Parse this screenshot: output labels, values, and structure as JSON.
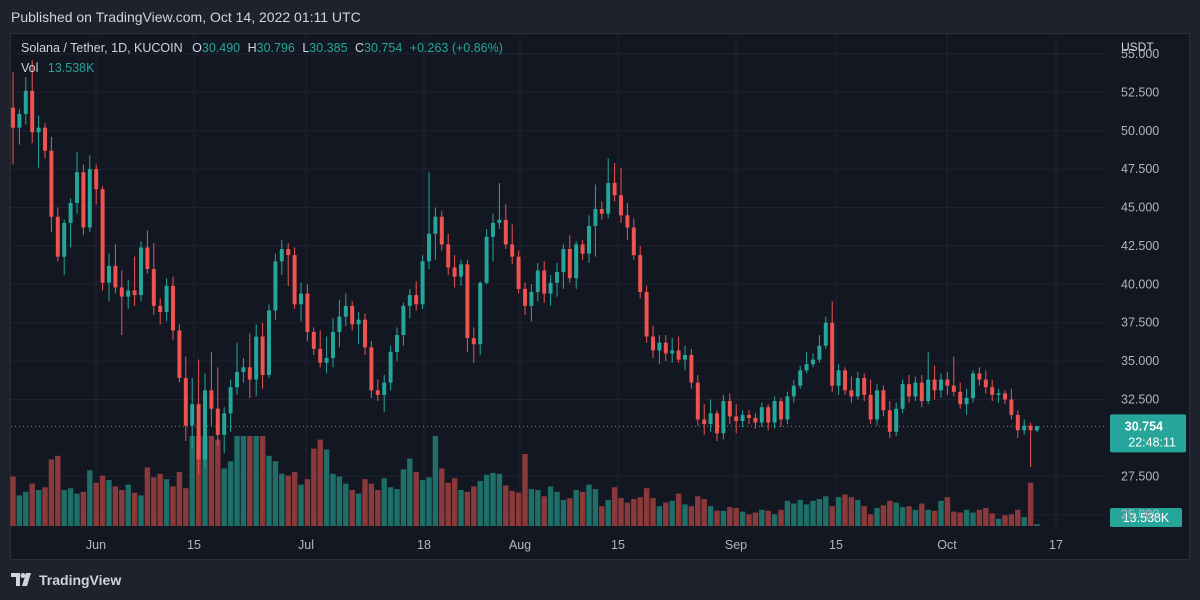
{
  "header": {
    "published": "Published on TradingView.com, Oct 14, 2022 01:11 UTC"
  },
  "legend": {
    "symbol": "Solana / Tether, 1D, KUCOIN",
    "o_label": "O",
    "o_value": "30.490",
    "h_label": "H",
    "h_value": "30.796",
    "l_label": "L",
    "l_value": "30.385",
    "c_label": "C",
    "c_value": "30.754",
    "change": "+0.263 (+0.86%)",
    "vol_label": "Vol",
    "vol_value": "13.538K"
  },
  "price_axis": {
    "currency": "USDT",
    "ticks": [
      "55.000",
      "52.500",
      "50.000",
      "47.500",
      "45.000",
      "42.500",
      "40.000",
      "37.500",
      "35.000",
      "32.500",
      "27.500",
      "25.000"
    ],
    "last_price": "30.754",
    "countdown": "22:48:11",
    "volume_badge": "13.538K"
  },
  "time_axis": {
    "ticks": [
      "Jun",
      "15",
      "Jul",
      "18",
      "Aug",
      "15",
      "Sep",
      "15",
      "Oct",
      "17"
    ]
  },
  "footer": {
    "brand": "TradingView"
  },
  "colors": {
    "up": "#26a69a",
    "down": "#ef5350",
    "vol_up": "#1f6e68",
    "vol_down": "#8a3a3b",
    "bg": "#131722"
  },
  "chart_data": {
    "type": "candlestick",
    "symbol": "Solana / Tether",
    "interval": "1D",
    "y_unit": "USDT",
    "ylim": [
      24.2,
      56.3
    ],
    "grid": true,
    "x_axis_dates": [
      "2022-06-01",
      "2022-06-15",
      "2022-07-01",
      "2022-07-18",
      "2022-08-01",
      "2022-08-15",
      "2022-09-01",
      "2022-09-15",
      "2022-10-01",
      "2022-10-17"
    ],
    "series": [
      {
        "o": 51.5,
        "h": 53.8,
        "l": 47.8,
        "c": 50.2,
        "v": 0.55
      },
      {
        "o": 50.2,
        "h": 51.4,
        "l": 49.1,
        "c": 51.1,
        "v": 0.34
      },
      {
        "o": 51.1,
        "h": 53.5,
        "l": 50.4,
        "c": 52.6,
        "v": 0.38
      },
      {
        "o": 52.6,
        "h": 54.6,
        "l": 49.2,
        "c": 49.9,
        "v": 0.47
      },
      {
        "o": 49.9,
        "h": 51.0,
        "l": 47.6,
        "c": 50.2,
        "v": 0.4
      },
      {
        "o": 50.2,
        "h": 50.5,
        "l": 48.2,
        "c": 48.7,
        "v": 0.43
      },
      {
        "o": 48.7,
        "h": 49.6,
        "l": 43.4,
        "c": 44.4,
        "v": 0.74
      },
      {
        "o": 44.4,
        "h": 45.0,
        "l": 41.5,
        "c": 41.8,
        "v": 0.78
      },
      {
        "o": 41.8,
        "h": 44.2,
        "l": 40.6,
        "c": 44.0,
        "v": 0.4
      },
      {
        "o": 44.0,
        "h": 45.6,
        "l": 42.4,
        "c": 45.3,
        "v": 0.42
      },
      {
        "o": 45.3,
        "h": 48.6,
        "l": 44.6,
        "c": 47.3,
        "v": 0.36
      },
      {
        "o": 47.3,
        "h": 47.8,
        "l": 43.2,
        "c": 43.7,
        "v": 0.38
      },
      {
        "o": 43.7,
        "h": 48.4,
        "l": 43.4,
        "c": 47.5,
        "v": 0.62
      },
      {
        "o": 47.5,
        "h": 47.8,
        "l": 45.2,
        "c": 46.2,
        "v": 0.48
      },
      {
        "o": 46.2,
        "h": 46.4,
        "l": 39.6,
        "c": 40.1,
        "v": 0.56
      },
      {
        "o": 40.1,
        "h": 42.0,
        "l": 38.9,
        "c": 41.2,
        "v": 0.51
      },
      {
        "o": 41.2,
        "h": 42.6,
        "l": 39.4,
        "c": 39.8,
        "v": 0.44
      },
      {
        "o": 39.8,
        "h": 40.9,
        "l": 36.7,
        "c": 39.2,
        "v": 0.4
      },
      {
        "o": 39.2,
        "h": 40.3,
        "l": 38.4,
        "c": 39.6,
        "v": 0.46
      },
      {
        "o": 39.6,
        "h": 41.8,
        "l": 38.6,
        "c": 39.3,
        "v": 0.37
      },
      {
        "o": 39.3,
        "h": 42.8,
        "l": 38.9,
        "c": 42.4,
        "v": 0.34
      },
      {
        "o": 42.4,
        "h": 43.5,
        "l": 40.7,
        "c": 41.0,
        "v": 0.65
      },
      {
        "o": 41.0,
        "h": 42.7,
        "l": 38.0,
        "c": 38.6,
        "v": 0.54
      },
      {
        "o": 38.6,
        "h": 39.1,
        "l": 37.4,
        "c": 38.2,
        "v": 0.58
      },
      {
        "o": 38.2,
        "h": 40.4,
        "l": 37.6,
        "c": 39.9,
        "v": 0.52
      },
      {
        "o": 39.9,
        "h": 40.5,
        "l": 36.4,
        "c": 37.0,
        "v": 0.44
      },
      {
        "o": 37.0,
        "h": 37.4,
        "l": 33.6,
        "c": 33.9,
        "v": 0.6
      },
      {
        "o": 33.9,
        "h": 35.3,
        "l": 29.8,
        "c": 30.8,
        "v": 0.42
      },
      {
        "o": 30.8,
        "h": 33.9,
        "l": 29.3,
        "c": 32.2,
        "v": 1.0
      },
      {
        "o": 32.2,
        "h": 35.1,
        "l": 27.6,
        "c": 28.6,
        "v": 1.0
      },
      {
        "o": 28.6,
        "h": 34.2,
        "l": 28.0,
        "c": 33.1,
        "v": 1.0
      },
      {
        "o": 33.1,
        "h": 35.6,
        "l": 30.8,
        "c": 31.9,
        "v": 1.0
      },
      {
        "o": 31.9,
        "h": 34.6,
        "l": 29.5,
        "c": 30.2,
        "v": 0.96
      },
      {
        "o": 30.2,
        "h": 32.0,
        "l": 29.0,
        "c": 31.6,
        "v": 0.64
      },
      {
        "o": 31.6,
        "h": 33.8,
        "l": 30.4,
        "c": 33.3,
        "v": 0.72
      },
      {
        "o": 33.3,
        "h": 36.2,
        "l": 32.8,
        "c": 34.3,
        "v": 1.0
      },
      {
        "o": 34.3,
        "h": 35.2,
        "l": 33.6,
        "c": 34.6,
        "v": 1.0
      },
      {
        "o": 34.6,
        "h": 36.8,
        "l": 32.6,
        "c": 33.8,
        "v": 1.0
      },
      {
        "o": 33.8,
        "h": 37.4,
        "l": 32.7,
        "c": 36.6,
        "v": 1.0
      },
      {
        "o": 36.6,
        "h": 37.5,
        "l": 33.2,
        "c": 34.1,
        "v": 1.0
      },
      {
        "o": 34.1,
        "h": 38.7,
        "l": 33.9,
        "c": 38.3,
        "v": 0.78
      },
      {
        "o": 38.3,
        "h": 42.0,
        "l": 37.7,
        "c": 41.5,
        "v": 0.72
      },
      {
        "o": 41.5,
        "h": 42.9,
        "l": 40.6,
        "c": 42.3,
        "v": 0.58
      },
      {
        "o": 42.3,
        "h": 42.7,
        "l": 39.9,
        "c": 41.9,
        "v": 0.56
      },
      {
        "o": 41.9,
        "h": 42.4,
        "l": 38.4,
        "c": 38.7,
        "v": 0.6
      },
      {
        "o": 38.7,
        "h": 40.1,
        "l": 37.6,
        "c": 39.4,
        "v": 0.46
      },
      {
        "o": 39.4,
        "h": 40.0,
        "l": 36.3,
        "c": 36.9,
        "v": 0.52
      },
      {
        "o": 36.9,
        "h": 37.2,
        "l": 35.4,
        "c": 35.8,
        "v": 0.86
      },
      {
        "o": 35.8,
        "h": 37.0,
        "l": 34.6,
        "c": 34.9,
        "v": 0.96
      },
      {
        "o": 34.9,
        "h": 36.6,
        "l": 34.2,
        "c": 35.2,
        "v": 0.85
      },
      {
        "o": 35.2,
        "h": 37.8,
        "l": 34.6,
        "c": 36.9,
        "v": 0.58
      },
      {
        "o": 36.9,
        "h": 39.0,
        "l": 35.9,
        "c": 37.9,
        "v": 0.55
      },
      {
        "o": 37.9,
        "h": 39.4,
        "l": 37.3,
        "c": 38.6,
        "v": 0.47
      },
      {
        "o": 38.6,
        "h": 38.9,
        "l": 37.0,
        "c": 37.4,
        "v": 0.4
      },
      {
        "o": 37.4,
        "h": 38.2,
        "l": 36.1,
        "c": 37.7,
        "v": 0.36
      },
      {
        "o": 37.7,
        "h": 38.1,
        "l": 35.4,
        "c": 35.9,
        "v": 0.52
      },
      {
        "o": 35.9,
        "h": 36.3,
        "l": 32.6,
        "c": 33.1,
        "v": 0.47
      },
      {
        "o": 33.1,
        "h": 33.8,
        "l": 32.4,
        "c": 32.8,
        "v": 0.4
      },
      {
        "o": 32.8,
        "h": 34.1,
        "l": 31.7,
        "c": 33.6,
        "v": 0.53
      },
      {
        "o": 33.6,
        "h": 36.0,
        "l": 33.1,
        "c": 35.6,
        "v": 0.43
      },
      {
        "o": 35.6,
        "h": 37.2,
        "l": 35.0,
        "c": 36.7,
        "v": 0.41
      },
      {
        "o": 36.7,
        "h": 38.8,
        "l": 36.0,
        "c": 38.6,
        "v": 0.63
      },
      {
        "o": 38.6,
        "h": 39.7,
        "l": 37.8,
        "c": 39.3,
        "v": 0.75
      },
      {
        "o": 39.3,
        "h": 40.2,
        "l": 38.3,
        "c": 38.7,
        "v": 0.6
      },
      {
        "o": 38.7,
        "h": 41.9,
        "l": 38.4,
        "c": 41.5,
        "v": 0.51
      },
      {
        "o": 41.5,
        "h": 47.3,
        "l": 41.0,
        "c": 43.3,
        "v": 0.54
      },
      {
        "o": 43.3,
        "h": 45.0,
        "l": 41.6,
        "c": 44.4,
        "v": 1.0
      },
      {
        "o": 44.4,
        "h": 44.8,
        "l": 42.2,
        "c": 42.6,
        "v": 0.64
      },
      {
        "o": 42.6,
        "h": 43.3,
        "l": 40.6,
        "c": 41.1,
        "v": 0.48
      },
      {
        "o": 41.1,
        "h": 41.9,
        "l": 39.8,
        "c": 40.5,
        "v": 0.53
      },
      {
        "o": 40.5,
        "h": 41.6,
        "l": 39.9,
        "c": 41.3,
        "v": 0.4
      },
      {
        "o": 41.3,
        "h": 41.6,
        "l": 35.6,
        "c": 36.5,
        "v": 0.38
      },
      {
        "o": 36.5,
        "h": 37.2,
        "l": 34.9,
        "c": 36.1,
        "v": 0.44
      },
      {
        "o": 36.1,
        "h": 40.2,
        "l": 35.4,
        "c": 40.1,
        "v": 0.5
      },
      {
        "o": 40.1,
        "h": 43.6,
        "l": 40.0,
        "c": 43.1,
        "v": 0.57
      },
      {
        "o": 43.1,
        "h": 44.6,
        "l": 41.5,
        "c": 44.0,
        "v": 0.59
      },
      {
        "o": 44.0,
        "h": 46.6,
        "l": 43.6,
        "c": 44.2,
        "v": 0.58
      },
      {
        "o": 44.2,
        "h": 45.2,
        "l": 42.3,
        "c": 42.6,
        "v": 0.45
      },
      {
        "o": 42.6,
        "h": 43.9,
        "l": 41.3,
        "c": 41.8,
        "v": 0.39
      },
      {
        "o": 41.8,
        "h": 42.2,
        "l": 39.4,
        "c": 39.7,
        "v": 0.37
      },
      {
        "o": 39.7,
        "h": 40.1,
        "l": 38.0,
        "c": 38.6,
        "v": 0.8
      },
      {
        "o": 38.6,
        "h": 40.0,
        "l": 37.6,
        "c": 39.5,
        "v": 0.41
      },
      {
        "o": 39.5,
        "h": 41.4,
        "l": 38.9,
        "c": 40.9,
        "v": 0.4
      },
      {
        "o": 40.9,
        "h": 41.5,
        "l": 38.8,
        "c": 39.4,
        "v": 0.33
      },
      {
        "o": 39.4,
        "h": 40.6,
        "l": 38.6,
        "c": 40.1,
        "v": 0.44
      },
      {
        "o": 40.1,
        "h": 41.4,
        "l": 39.2,
        "c": 40.8,
        "v": 0.38
      },
      {
        "o": 40.8,
        "h": 42.6,
        "l": 39.7,
        "c": 42.3,
        "v": 0.29
      },
      {
        "o": 42.3,
        "h": 43.2,
        "l": 40.1,
        "c": 40.4,
        "v": 0.31
      },
      {
        "o": 40.4,
        "h": 42.8,
        "l": 39.7,
        "c": 42.6,
        "v": 0.4
      },
      {
        "o": 42.6,
        "h": 42.9,
        "l": 41.6,
        "c": 42.0,
        "v": 0.38
      },
      {
        "o": 42.0,
        "h": 44.5,
        "l": 41.4,
        "c": 43.8,
        "v": 0.46
      },
      {
        "o": 43.8,
        "h": 46.5,
        "l": 41.8,
        "c": 44.9,
        "v": 0.41
      },
      {
        "o": 44.9,
        "h": 45.4,
        "l": 44.2,
        "c": 44.6,
        "v": 0.22
      },
      {
        "o": 44.6,
        "h": 48.2,
        "l": 44.3,
        "c": 46.6,
        "v": 0.29
      },
      {
        "o": 46.6,
        "h": 47.9,
        "l": 45.4,
        "c": 45.8,
        "v": 0.43
      },
      {
        "o": 45.8,
        "h": 47.6,
        "l": 44.0,
        "c": 44.5,
        "v": 0.31
      },
      {
        "o": 44.5,
        "h": 45.3,
        "l": 42.9,
        "c": 43.7,
        "v": 0.26
      },
      {
        "o": 43.7,
        "h": 44.3,
        "l": 41.6,
        "c": 41.9,
        "v": 0.3
      },
      {
        "o": 41.9,
        "h": 42.5,
        "l": 39.1,
        "c": 39.5,
        "v": 0.32
      },
      {
        "o": 39.5,
        "h": 39.9,
        "l": 36.2,
        "c": 36.6,
        "v": 0.42
      },
      {
        "o": 36.6,
        "h": 37.3,
        "l": 35.2,
        "c": 35.7,
        "v": 0.31
      },
      {
        "o": 35.7,
        "h": 36.7,
        "l": 34.8,
        "c": 36.2,
        "v": 0.22
      },
      {
        "o": 36.2,
        "h": 36.7,
        "l": 35.0,
        "c": 35.5,
        "v": 0.26
      },
      {
        "o": 35.5,
        "h": 36.5,
        "l": 34.9,
        "c": 35.7,
        "v": 0.28
      },
      {
        "o": 35.7,
        "h": 36.6,
        "l": 34.9,
        "c": 35.1,
        "v": 0.36
      },
      {
        "o": 35.1,
        "h": 36.0,
        "l": 34.4,
        "c": 35.4,
        "v": 0.24
      },
      {
        "o": 35.4,
        "h": 35.8,
        "l": 33.2,
        "c": 33.6,
        "v": 0.22
      },
      {
        "o": 33.6,
        "h": 34.1,
        "l": 30.8,
        "c": 31.2,
        "v": 0.33
      },
      {
        "o": 31.2,
        "h": 32.2,
        "l": 30.2,
        "c": 30.9,
        "v": 0.3
      },
      {
        "o": 30.9,
        "h": 32.5,
        "l": 30.4,
        "c": 31.6,
        "v": 0.22
      },
      {
        "o": 31.6,
        "h": 31.8,
        "l": 29.8,
        "c": 30.3,
        "v": 0.17
      },
      {
        "o": 30.3,
        "h": 32.8,
        "l": 29.9,
        "c": 32.4,
        "v": 0.17
      },
      {
        "o": 32.4,
        "h": 32.9,
        "l": 30.9,
        "c": 31.4,
        "v": 0.21
      },
      {
        "o": 31.4,
        "h": 32.2,
        "l": 30.3,
        "c": 31.1,
        "v": 0.2
      },
      {
        "o": 31.1,
        "h": 31.8,
        "l": 30.7,
        "c": 31.5,
        "v": 0.16
      },
      {
        "o": 31.5,
        "h": 31.8,
        "l": 30.9,
        "c": 31.3,
        "v": 0.13
      },
      {
        "o": 31.3,
        "h": 31.6,
        "l": 30.6,
        "c": 31.0,
        "v": 0.15
      },
      {
        "o": 31.0,
        "h": 32.3,
        "l": 30.7,
        "c": 32.0,
        "v": 0.18
      },
      {
        "o": 32.0,
        "h": 32.2,
        "l": 30.5,
        "c": 31.0,
        "v": 0.17
      },
      {
        "o": 31.0,
        "h": 32.7,
        "l": 30.6,
        "c": 32.4,
        "v": 0.13
      },
      {
        "o": 32.4,
        "h": 32.6,
        "l": 30.7,
        "c": 31.2,
        "v": 0.18
      },
      {
        "o": 31.2,
        "h": 33.0,
        "l": 30.9,
        "c": 32.7,
        "v": 0.28
      },
      {
        "o": 32.7,
        "h": 33.8,
        "l": 32.3,
        "c": 33.4,
        "v": 0.25
      },
      {
        "o": 33.4,
        "h": 34.7,
        "l": 33.2,
        "c": 34.4,
        "v": 0.29
      },
      {
        "o": 34.4,
        "h": 35.6,
        "l": 34.2,
        "c": 34.8,
        "v": 0.24
      },
      {
        "o": 34.8,
        "h": 35.5,
        "l": 34.6,
        "c": 35.1,
        "v": 0.28
      },
      {
        "o": 35.1,
        "h": 36.7,
        "l": 34.9,
        "c": 36.0,
        "v": 0.3
      },
      {
        "o": 36.0,
        "h": 37.9,
        "l": 35.8,
        "c": 37.5,
        "v": 0.33
      },
      {
        "o": 37.5,
        "h": 38.9,
        "l": 33.0,
        "c": 33.4,
        "v": 0.22
      },
      {
        "o": 33.4,
        "h": 34.8,
        "l": 32.8,
        "c": 34.4,
        "v": 0.32
      },
      {
        "o": 34.4,
        "h": 34.6,
        "l": 32.8,
        "c": 33.1,
        "v": 0.35
      },
      {
        "o": 33.1,
        "h": 34.0,
        "l": 32.3,
        "c": 32.7,
        "v": 0.32
      },
      {
        "o": 32.7,
        "h": 34.3,
        "l": 32.5,
        "c": 33.9,
        "v": 0.29
      },
      {
        "o": 33.9,
        "h": 34.2,
        "l": 32.4,
        "c": 32.8,
        "v": 0.22
      },
      {
        "o": 32.8,
        "h": 33.8,
        "l": 30.9,
        "c": 31.2,
        "v": 0.13
      },
      {
        "o": 31.2,
        "h": 33.5,
        "l": 30.8,
        "c": 33.1,
        "v": 0.2
      },
      {
        "o": 33.1,
        "h": 33.4,
        "l": 31.4,
        "c": 31.8,
        "v": 0.23
      },
      {
        "o": 31.8,
        "h": 32.4,
        "l": 30.0,
        "c": 30.4,
        "v": 0.28
      },
      {
        "o": 30.4,
        "h": 32.3,
        "l": 30.1,
        "c": 31.9,
        "v": 0.26
      },
      {
        "o": 31.9,
        "h": 33.8,
        "l": 31.6,
        "c": 33.5,
        "v": 0.21
      },
      {
        "o": 33.5,
        "h": 34.1,
        "l": 32.3,
        "c": 32.7,
        "v": 0.22
      },
      {
        "o": 32.7,
        "h": 34.0,
        "l": 32.4,
        "c": 33.6,
        "v": 0.18
      },
      {
        "o": 33.6,
        "h": 34.1,
        "l": 32.0,
        "c": 32.4,
        "v": 0.25
      },
      {
        "o": 32.4,
        "h": 35.6,
        "l": 32.2,
        "c": 33.8,
        "v": 0.18
      },
      {
        "o": 33.8,
        "h": 34.7,
        "l": 32.5,
        "c": 33.1,
        "v": 0.17
      },
      {
        "o": 33.1,
        "h": 34.2,
        "l": 32.6,
        "c": 33.8,
        "v": 0.28
      },
      {
        "o": 33.8,
        "h": 34.3,
        "l": 32.8,
        "c": 33.4,
        "v": 0.32
      },
      {
        "o": 33.4,
        "h": 35.3,
        "l": 32.7,
        "c": 33.0,
        "v": 0.16
      },
      {
        "o": 33.0,
        "h": 33.6,
        "l": 31.9,
        "c": 32.2,
        "v": 0.15
      },
      {
        "o": 32.2,
        "h": 33.2,
        "l": 31.5,
        "c": 32.6,
        "v": 0.18
      },
      {
        "o": 32.6,
        "h": 34.4,
        "l": 32.3,
        "c": 34.2,
        "v": 0.15
      },
      {
        "o": 34.2,
        "h": 34.6,
        "l": 33.4,
        "c": 33.8,
        "v": 0.18
      },
      {
        "o": 33.8,
        "h": 34.4,
        "l": 32.9,
        "c": 33.3,
        "v": 0.2
      },
      {
        "o": 33.3,
        "h": 33.8,
        "l": 32.4,
        "c": 32.8,
        "v": 0.14
      },
      {
        "o": 32.8,
        "h": 33.2,
        "l": 32.3,
        "c": 32.9,
        "v": 0.08
      },
      {
        "o": 32.9,
        "h": 33.1,
        "l": 32.2,
        "c": 32.5,
        "v": 0.12
      },
      {
        "o": 32.5,
        "h": 33.2,
        "l": 31.2,
        "c": 31.5,
        "v": 0.13
      },
      {
        "o": 31.5,
        "h": 31.8,
        "l": 30.0,
        "c": 30.5,
        "v": 0.18
      },
      {
        "o": 30.5,
        "h": 31.2,
        "l": 30.2,
        "c": 30.8,
        "v": 0.1
      },
      {
        "o": 30.8,
        "h": 31.0,
        "l": 28.1,
        "c": 30.5,
        "v": 0.48
      },
      {
        "o": 30.49,
        "h": 30.796,
        "l": 30.385,
        "c": 30.754,
        "v": 0.02
      }
    ]
  }
}
